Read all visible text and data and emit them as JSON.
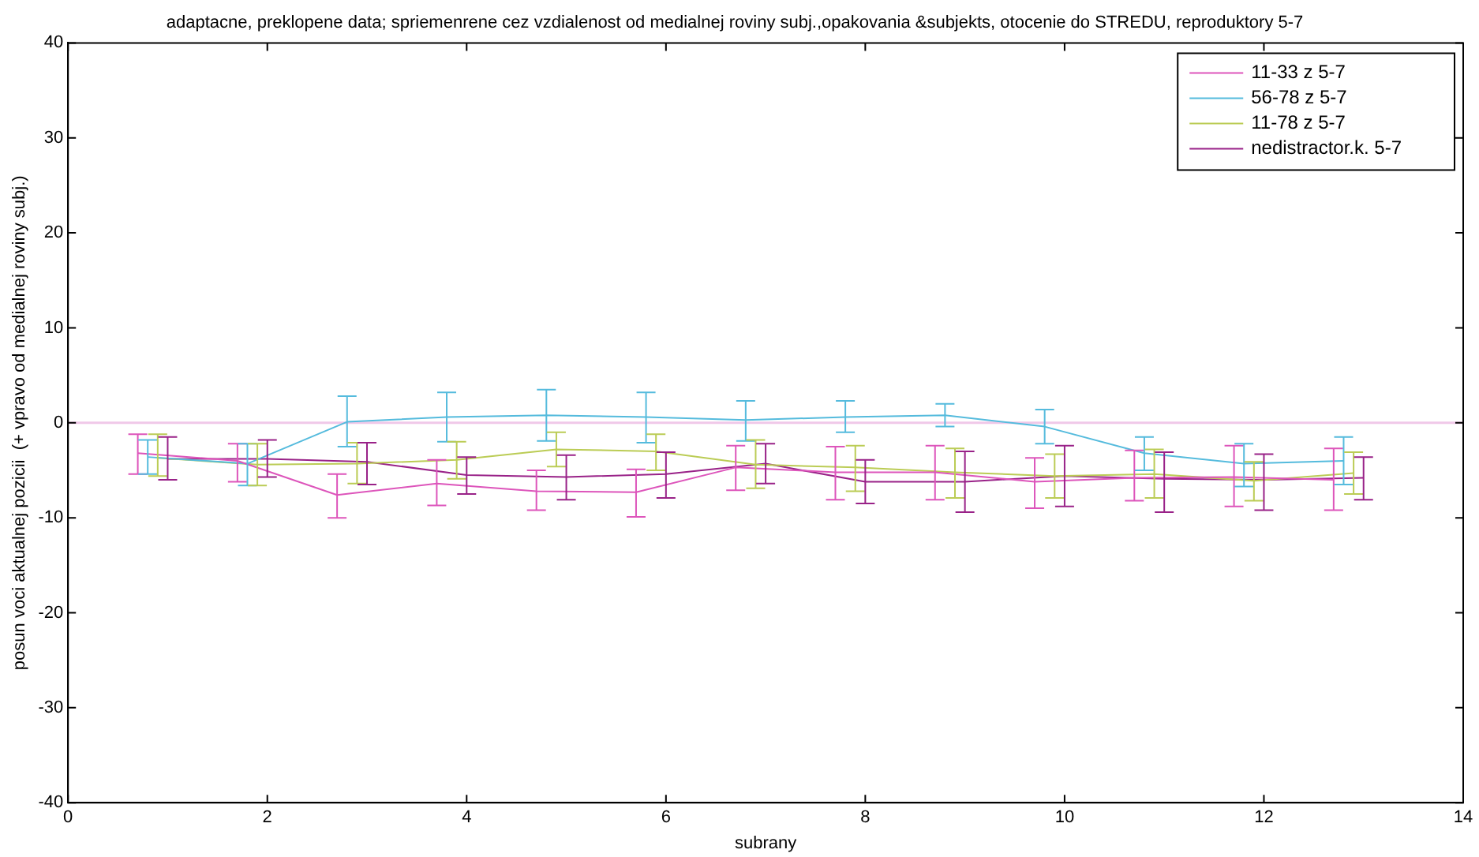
{
  "chart_data": {
    "type": "line",
    "title": "adaptacne, preklopene data; spriemenrene cez vzdialenost od medialnej roviny subj.,opakovania &subjekts, otocenie do STREDU, reproduktory 5-7",
    "xlabel": "subrany",
    "ylabel": "posun voci aktualnej pozicii  (+ vpravo od medialnej roviny subj.)",
    "xlim": [
      0,
      14
    ],
    "xticks": [
      0,
      2,
      4,
      6,
      8,
      10,
      12,
      14
    ],
    "ylim": [
      -40,
      40
    ],
    "yticks": [
      -40,
      -30,
      -20,
      -10,
      0,
      10,
      20,
      30,
      40
    ],
    "grid": false,
    "legend": "top right",
    "marker": "none",
    "line_style": "solid",
    "ref_lines": [
      {
        "axis": "y",
        "value": 0,
        "color": "#f0c8e8"
      }
    ],
    "series": [
      {
        "name": "11-33 z 5-7",
        "color": "#dd55bb",
        "x": [
          0.7,
          1.7,
          2.7,
          3.7,
          4.7,
          5.7,
          6.7,
          7.7,
          8.7,
          9.7,
          10.7,
          11.7,
          12.7
        ],
        "values": [
          -3.2,
          -4.0,
          -7.6,
          -6.4,
          -7.2,
          -7.3,
          -4.7,
          -5.2,
          -5.2,
          -6.2,
          -5.8,
          -5.7,
          -6.0
        ],
        "errors": [
          [
            -5.4,
            -1.2
          ],
          [
            -6.2,
            -2.2
          ],
          [
            -10.0,
            -5.4
          ],
          [
            -8.7,
            -3.9
          ],
          [
            -9.2,
            -5.0
          ],
          [
            -9.9,
            -4.9
          ],
          [
            -7.1,
            -2.4
          ],
          [
            -8.1,
            -2.5
          ],
          [
            -8.1,
            -2.4
          ],
          [
            -9.0,
            -3.7
          ],
          [
            -8.2,
            -2.9
          ],
          [
            -8.8,
            -2.4
          ],
          [
            -9.2,
            -2.7
          ]
        ]
      },
      {
        "name": "56-78 z 5-7",
        "color": "#55bbdd",
        "x": [
          0.8,
          1.8,
          2.8,
          3.8,
          4.8,
          5.8,
          6.8,
          7.8,
          8.8,
          9.8,
          10.8,
          11.8,
          12.8
        ],
        "values": [
          -3.6,
          -4.3,
          0.1,
          0.6,
          0.8,
          0.6,
          0.3,
          0.6,
          0.8,
          -0.4,
          -3.2,
          -4.3,
          -4.0
        ],
        "errors": [
          [
            -5.4,
            -1.8
          ],
          [
            -6.6,
            -2.2
          ],
          [
            -2.5,
            2.8
          ],
          [
            -2.0,
            3.2
          ],
          [
            -1.9,
            3.5
          ],
          [
            -2.1,
            3.2
          ],
          [
            -1.9,
            2.3
          ],
          [
            -1.0,
            2.3
          ],
          [
            -0.4,
            2.0
          ],
          [
            -2.2,
            1.4
          ],
          [
            -5.0,
            -1.5
          ],
          [
            -6.7,
            -2.2
          ],
          [
            -6.5,
            -1.5
          ]
        ]
      },
      {
        "name": "11-78 z 5-7",
        "color": "#bbcc55",
        "x": [
          0.9,
          1.9,
          2.9,
          3.9,
          4.9,
          5.9,
          6.9,
          7.9,
          8.9,
          9.9,
          10.9,
          11.9,
          12.9
        ],
        "values": [
          -3.7,
          -4.4,
          -4.3,
          -3.9,
          -2.8,
          -3.0,
          -4.4,
          -4.7,
          -5.2,
          -5.6,
          -5.4,
          -6.1,
          -5.3
        ],
        "errors": [
          [
            -5.6,
            -1.2
          ],
          [
            -6.6,
            -2.2
          ],
          [
            -6.4,
            -2.1
          ],
          [
            -5.9,
            -2.0
          ],
          [
            -4.6,
            -1.0
          ],
          [
            -5.0,
            -1.2
          ],
          [
            -6.9,
            -1.8
          ],
          [
            -7.2,
            -2.4
          ],
          [
            -7.9,
            -2.7
          ],
          [
            -7.9,
            -3.3
          ],
          [
            -7.9,
            -2.8
          ],
          [
            -8.2,
            -4.1
          ],
          [
            -7.5,
            -3.1
          ]
        ]
      },
      {
        "name": "nedistractor.k. 5-7",
        "color": "#992288",
        "x": [
          1,
          2,
          3,
          4,
          5,
          6,
          7,
          8,
          9,
          10,
          11,
          12,
          13
        ],
        "values": [
          -3.8,
          -3.8,
          -4.1,
          -5.5,
          -5.7,
          -5.4,
          -4.3,
          -6.2,
          -6.2,
          -5.6,
          -5.9,
          -6.0,
          -5.8
        ],
        "errors": [
          [
            -6.0,
            -1.5
          ],
          [
            -5.7,
            -1.8
          ],
          [
            -6.5,
            -2.1
          ],
          [
            -7.5,
            -3.6
          ],
          [
            -8.1,
            -3.4
          ],
          [
            -7.9,
            -3.1
          ],
          [
            -6.4,
            -2.2
          ],
          [
            -8.5,
            -3.9
          ],
          [
            -9.4,
            -3.0
          ],
          [
            -8.8,
            -2.4
          ],
          [
            -9.4,
            -3.1
          ],
          [
            -9.2,
            -3.3
          ],
          [
            -8.1,
            -3.6
          ]
        ]
      }
    ]
  }
}
